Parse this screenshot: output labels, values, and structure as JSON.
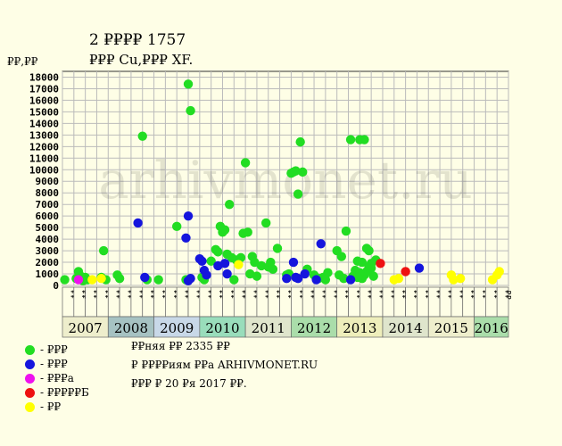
{
  "header": {
    "title": "2 ₽₽₽₽ 1757",
    "subtitle": "₽₽₽ Cu,₽₽₽ XF.",
    "unit": "₽₽,₽₽"
  },
  "legend": [
    {
      "label": "- ₽₽₽",
      "color": "#22dd22"
    },
    {
      "label": "- ₽₽₽",
      "color": "#1515dd"
    },
    {
      "label": "- ₽₽₽a",
      "color": "#ee11ee"
    },
    {
      "label": "- ₽₽₽₽₽Б",
      "color": "#ee1111"
    },
    {
      "label": "- ₽₽",
      "color": "#ffff00"
    }
  ],
  "notes": {
    "line1": "₽₽няя ₽₽ 2335 ₽₽",
    "line2": "₽ ₽₽₽₽иям ₽₽a ARHIVMONET.RU",
    "line3": "₽₽₽ ₽ 20 ₽я 2017 ₽₽."
  },
  "watermark": "arhivmonet.ru",
  "chart_data": {
    "type": "scatter",
    "title": "2 ₽₽₽₽ 1757",
    "ylabel": "₽₽,₽₽",
    "ylim": [
      0,
      18500
    ],
    "yticks": [
      0,
      1000,
      2000,
      3000,
      4000,
      5000,
      6000,
      7000,
      8000,
      9000,
      10000,
      11000,
      12000,
      13000,
      14000,
      15000,
      16000,
      17000,
      18000
    ],
    "grid": true,
    "xlim": [
      2007.0,
      2016.75
    ],
    "years": [
      {
        "label": "2007",
        "start": 2007.0,
        "end": 2008.0,
        "color": "#eeeecc"
      },
      {
        "label": "2008",
        "start": 2008.0,
        "end": 2009.0,
        "color": "#a6c2c2"
      },
      {
        "label": "2009",
        "start": 2009.0,
        "end": 2010.0,
        "color": "#c8d8e8"
      },
      {
        "label": "2010",
        "start": 2010.0,
        "end": 2011.0,
        "color": "#99ddbb"
      },
      {
        "label": "2011",
        "start": 2011.0,
        "end": 2012.0,
        "color": "#dfe5cc"
      },
      {
        "label": "2012",
        "start": 2012.0,
        "end": 2013.0,
        "color": "#aaddaa"
      },
      {
        "label": "2013",
        "start": 2013.0,
        "end": 2014.0,
        "color": "#eeeebb"
      },
      {
        "label": "2014",
        "start": 2014.0,
        "end": 2015.0,
        "color": "#dfe5cc"
      },
      {
        "label": "2015",
        "start": 2015.0,
        "end": 2016.0,
        "color": "#eeeecc"
      },
      {
        "label": "2016",
        "start": 2016.0,
        "end": 2016.75,
        "color": "#aaddaa"
      }
    ],
    "month_labels": [
      "₽₽",
      "₽₽",
      "₽₽",
      "₽₽",
      "₽₽",
      "₽₽",
      "₽₽",
      "₽₽",
      "₽₽",
      "₽₽",
      "₽₽",
      "₽₽",
      "₽₽",
      "₽₽",
      "₽₽",
      "₽₽",
      "₽₽",
      "₽₽",
      "₽₽",
      "₽₽",
      "₽₽",
      "₽₽",
      "₽₽",
      "₽₽",
      "₽₽",
      "₽₽",
      "₽₽",
      "₽₽",
      "₽₽",
      "₽₽",
      "₽₽",
      "₽₽",
      "₽₽",
      "₽₽",
      "₽₽",
      "₽₽",
      "₽₽",
      "₽₽",
      "₽₽"
    ],
    "series": [
      {
        "name": "₽₽₽",
        "color": "#22dd22",
        "points": [
          [
            2007.05,
            500
          ],
          [
            2007.3,
            600
          ],
          [
            2007.35,
            1200
          ],
          [
            2007.4,
            800
          ],
          [
            2007.45,
            400
          ],
          [
            2007.5,
            700
          ],
          [
            2007.55,
            500
          ],
          [
            2007.85,
            700
          ],
          [
            2007.95,
            500
          ],
          [
            2007.9,
            3000
          ],
          [
            2008.2,
            900
          ],
          [
            2008.25,
            600
          ],
          [
            2008.75,
            12900
          ],
          [
            2008.85,
            500
          ],
          [
            2009.1,
            500
          ],
          [
            2009.5,
            5100
          ],
          [
            2009.75,
            17400
          ],
          [
            2009.8,
            15100
          ],
          [
            2009.7,
            500
          ],
          [
            2010.05,
            700
          ],
          [
            2010.1,
            500
          ],
          [
            2010.25,
            2100
          ],
          [
            2010.35,
            3100
          ],
          [
            2010.4,
            2900
          ],
          [
            2010.45,
            5100
          ],
          [
            2010.5,
            4600
          ],
          [
            2010.55,
            4800
          ],
          [
            2010.6,
            2700
          ],
          [
            2010.65,
            7000
          ],
          [
            2010.7,
            2400
          ],
          [
            2010.75,
            500
          ],
          [
            2010.8,
            2200
          ],
          [
            2010.9,
            2400
          ],
          [
            2010.95,
            4500
          ],
          [
            2011.0,
            10600
          ],
          [
            2011.05,
            4600
          ],
          [
            2011.1,
            1000
          ],
          [
            2011.15,
            2500
          ],
          [
            2011.2,
            2000
          ],
          [
            2011.25,
            800
          ],
          [
            2011.35,
            1700
          ],
          [
            2011.45,
            5400
          ],
          [
            2011.5,
            1600
          ],
          [
            2011.55,
            2000
          ],
          [
            2011.6,
            1400
          ],
          [
            2011.7,
            3200
          ],
          [
            2011.9,
            900
          ],
          [
            2011.95,
            1000
          ],
          [
            2012.0,
            9700
          ],
          [
            2012.05,
            9800
          ],
          [
            2012.1,
            9900
          ],
          [
            2012.15,
            7900
          ],
          [
            2012.2,
            12400
          ],
          [
            2012.25,
            9800
          ],
          [
            2012.35,
            1400
          ],
          [
            2012.5,
            900
          ],
          [
            2012.6,
            600
          ],
          [
            2012.7,
            700
          ],
          [
            2012.8,
            1100
          ],
          [
            2012.75,
            500
          ],
          [
            2013.0,
            3000
          ],
          [
            2013.05,
            900
          ],
          [
            2013.1,
            2500
          ],
          [
            2013.15,
            600
          ],
          [
            2013.2,
            4700
          ],
          [
            2013.3,
            12600
          ],
          [
            2013.35,
            800
          ],
          [
            2013.4,
            1300
          ],
          [
            2013.45,
            2100
          ],
          [
            2013.5,
            12600
          ],
          [
            2013.55,
            2000
          ],
          [
            2013.6,
            12600
          ],
          [
            2013.65,
            3200
          ],
          [
            2013.7,
            3000
          ],
          [
            2013.75,
            1500
          ],
          [
            2013.8,
            800
          ],
          [
            2013.85,
            2200
          ],
          [
            2013.55,
            600
          ],
          [
            2013.6,
            900
          ],
          [
            2013.65,
            1200
          ],
          [
            2013.7,
            1600
          ],
          [
            2013.75,
            1900
          ],
          [
            2013.5,
            1100
          ],
          [
            2013.45,
            700
          ]
        ]
      },
      {
        "name": "₽₽₽",
        "color": "#1515dd",
        "points": [
          [
            2008.65,
            5400
          ],
          [
            2008.8,
            700
          ],
          [
            2009.75,
            6000
          ],
          [
            2009.7,
            4100
          ],
          [
            2009.75,
            400
          ],
          [
            2009.8,
            600
          ],
          [
            2010.0,
            2300
          ],
          [
            2010.05,
            2100
          ],
          [
            2010.1,
            1300
          ],
          [
            2010.15,
            900
          ],
          [
            2010.4,
            1700
          ],
          [
            2010.55,
            1900
          ],
          [
            2010.6,
            1000
          ],
          [
            2011.9,
            600
          ],
          [
            2012.05,
            2000
          ],
          [
            2012.1,
            700
          ],
          [
            2012.15,
            600
          ],
          [
            2012.3,
            1000
          ],
          [
            2012.55,
            500
          ],
          [
            2012.65,
            3600
          ],
          [
            2013.3,
            500
          ],
          [
            2014.8,
            1500
          ]
        ]
      },
      {
        "name": "₽₽₽a",
        "color": "#ee11ee",
        "points": [
          [
            2007.35,
            500
          ]
        ]
      },
      {
        "name": "₽₽₽₽₽Б",
        "color": "#ee1111",
        "points": [
          [
            2013.95,
            1900
          ],
          [
            2014.5,
            1200
          ]
        ]
      },
      {
        "name": "₽₽",
        "color": "#ffff00",
        "points": [
          [
            2007.65,
            500
          ],
          [
            2007.85,
            600
          ],
          [
            2010.85,
            1800
          ],
          [
            2014.25,
            500
          ],
          [
            2014.35,
            600
          ],
          [
            2015.5,
            900
          ],
          [
            2015.55,
            500
          ],
          [
            2015.7,
            600
          ],
          [
            2016.4,
            500
          ],
          [
            2016.5,
            900
          ],
          [
            2016.55,
            1200
          ]
        ]
      }
    ]
  }
}
